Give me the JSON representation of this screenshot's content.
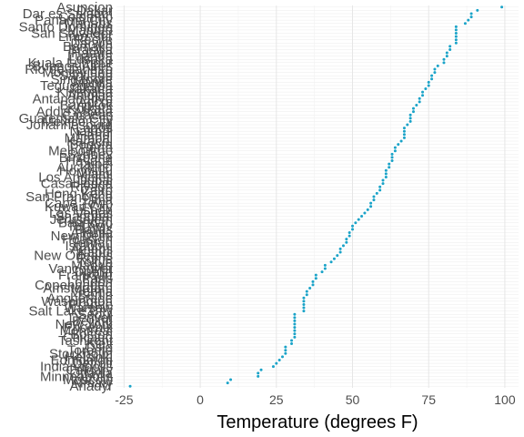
{
  "chart_data": {
    "type": "scatter",
    "title": "",
    "xlabel": "Temperature (degrees F)",
    "ylabel": "",
    "xlim": [
      -27.5,
      104.5
    ],
    "x_ticks": [
      "-25",
      "0",
      "25",
      "50",
      "75",
      "100"
    ],
    "x_tick_values": [
      -25,
      0,
      25,
      50,
      75,
      100
    ],
    "grid": true,
    "legend": "none",
    "point_color": "#1aa3c8",
    "points": [
      {
        "city": "Anadyr",
        "temp": -23
      },
      {
        "city": "Almaty",
        "temp": 9
      },
      {
        "city": "Moscow",
        "temp": 10
      },
      {
        "city": "Minneapolis",
        "temp": 19
      },
      {
        "city": "Ottawa",
        "temp": 19
      },
      {
        "city": "Calgary",
        "temp": 20
      },
      {
        "city": "Indianapolis",
        "temp": 24
      },
      {
        "city": "Detroit",
        "temp": 25
      },
      {
        "city": "Edmonton",
        "temp": 26
      },
      {
        "city": "Helsinki",
        "temp": 27
      },
      {
        "city": "Stockholm",
        "temp": 28
      },
      {
        "city": "Toronto",
        "temp": 28
      },
      {
        "city": "Oslo",
        "temp": 28
      },
      {
        "city": "Kiev",
        "temp": 30
      },
      {
        "city": "Tashkent",
        "temp": 30
      },
      {
        "city": "Chicago",
        "temp": 31
      },
      {
        "city": "Boston",
        "temp": 31
      },
      {
        "city": "Montreal",
        "temp": 31
      },
      {
        "city": "Phoenix",
        "temp": 31
      },
      {
        "city": "New York",
        "temp": 31
      },
      {
        "city": "Beijing",
        "temp": 31
      },
      {
        "city": "Denver",
        "temp": 31
      },
      {
        "city": "Seoul",
        "temp": 31
      },
      {
        "city": "Salt Lake City",
        "temp": 34
      },
      {
        "city": "Warsaw",
        "temp": 34
      },
      {
        "city": "Prague",
        "temp": 34
      },
      {
        "city": "Washington",
        "temp": 34
      },
      {
        "city": "Anchorage",
        "temp": 34
      },
      {
        "city": "Berlin",
        "temp": 35
      },
      {
        "city": "Vienna",
        "temp": 35
      },
      {
        "city": "Amsterdam",
        "temp": 36
      },
      {
        "city": "Copenhagen",
        "temp": 37
      },
      {
        "city": "London",
        "temp": 37
      },
      {
        "city": "Paris",
        "temp": 38
      },
      {
        "city": "Frankfurt",
        "temp": 38
      },
      {
        "city": "Dublin",
        "temp": 40
      },
      {
        "city": "Vancouver",
        "temp": 41
      },
      {
        "city": "Madrid",
        "temp": 41
      },
      {
        "city": "Tokyo",
        "temp": 43
      },
      {
        "city": "Rome",
        "temp": 44
      },
      {
        "city": "New Orleans",
        "temp": 45
      },
      {
        "city": "Kabul",
        "temp": 46
      },
      {
        "city": "Athens",
        "temp": 46
      },
      {
        "city": "Istanbul",
        "temp": 47
      },
      {
        "city": "Tehran",
        "temp": 48
      },
      {
        "city": "Houston",
        "temp": 48
      },
      {
        "city": "New Delhi",
        "temp": 49
      },
      {
        "city": "Atlanta",
        "temp": 49
      },
      {
        "city": "Dallas",
        "temp": 50
      },
      {
        "city": "Tel Aviv",
        "temp": 50
      },
      {
        "city": "Baghdad",
        "temp": 51
      },
      {
        "city": "Jerusalem",
        "temp": 52
      },
      {
        "city": "Shanghai",
        "temp": 53
      },
      {
        "city": "Las Vegas",
        "temp": 54
      },
      {
        "city": "Lisbon",
        "temp": 55
      },
      {
        "city": "Kuwait City",
        "temp": 56
      },
      {
        "city": "Cape Town",
        "temp": 56
      },
      {
        "city": "Lima",
        "temp": 57
      },
      {
        "city": "San Francisco",
        "temp": 57
      },
      {
        "city": "Hong Kong",
        "temp": 58
      },
      {
        "city": "Cairo",
        "temp": 59
      },
      {
        "city": "Riyadh",
        "temp": 59
      },
      {
        "city": "Casablanca",
        "temp": 60
      },
      {
        "city": "Dubai",
        "temp": 60
      },
      {
        "city": "Los Angeles",
        "temp": 61
      },
      {
        "city": "Miami",
        "temp": 61
      },
      {
        "city": "Honolulu",
        "temp": 61
      },
      {
        "city": "Auckland",
        "temp": 62
      },
      {
        "city": "Taipei",
        "temp": 62
      },
      {
        "city": "Havana",
        "temp": 63
      },
      {
        "city": "Brisbane",
        "temp": 63
      },
      {
        "city": "Sydney",
        "temp": 63
      },
      {
        "city": "Melbourne",
        "temp": 64
      },
      {
        "city": "Perth",
        "temp": 64
      },
      {
        "city": "Bogota",
        "temp": 65
      },
      {
        "city": "Karachi",
        "temp": 66
      },
      {
        "city": "Mumbai",
        "temp": 67
      },
      {
        "city": "Hanoi",
        "temp": 67
      },
      {
        "city": "Nairobi",
        "temp": 67
      },
      {
        "city": "Lagos",
        "temp": 67
      },
      {
        "city": "Johannesburg",
        "temp": 68
      },
      {
        "city": "Mexico City",
        "temp": 69
      },
      {
        "city": "Guatemala City",
        "temp": 69
      },
      {
        "city": "Caracas",
        "temp": 69
      },
      {
        "city": "Addis Ababa",
        "temp": 70
      },
      {
        "city": "Kolkata",
        "temp": 70
      },
      {
        "city": "Bangkok",
        "temp": 71
      },
      {
        "city": "Accra",
        "temp": 72
      },
      {
        "city": "Antananarivo",
        "temp": 72
      },
      {
        "city": "Abidjan",
        "temp": 73
      },
      {
        "city": "Kinshasa",
        "temp": 73
      },
      {
        "city": "Jakarta",
        "temp": 74
      },
      {
        "city": "Tegucigalpa",
        "temp": 75
      },
      {
        "city": "Manila",
        "temp": 75
      },
      {
        "city": "Singapore",
        "temp": 76
      },
      {
        "city": "Santiago",
        "temp": 76
      },
      {
        "city": "Montevideo",
        "temp": 77
      },
      {
        "city": "Rio de Janeiro",
        "temp": 77
      },
      {
        "city": "Buenos Aires",
        "temp": 78
      },
      {
        "city": "Kuala Lumpur",
        "temp": 80
      },
      {
        "city": "Lusaka",
        "temp": 80
      },
      {
        "city": "Luanda",
        "temp": 81
      },
      {
        "city": "Harare",
        "temp": 81
      },
      {
        "city": "Brasilia",
        "temp": 82
      },
      {
        "city": "Bamako",
        "temp": 82
      },
      {
        "city": "Darwin",
        "temp": 84
      },
      {
        "city": "Recife",
        "temp": 84
      },
      {
        "city": "Lima Sur",
        "temp": 84
      },
      {
        "city": "San Salvador",
        "temp": 84
      },
      {
        "city": "Maputo",
        "temp": 84
      },
      {
        "city": "Santo Domingo",
        "temp": 84
      },
      {
        "city": "Manaus",
        "temp": 87
      },
      {
        "city": "Panama City",
        "temp": 88
      },
      {
        "city": "Colombo",
        "temp": 89
      },
      {
        "city": "Dar es Salaam",
        "temp": 89
      },
      {
        "city": "Dakar",
        "temp": 91
      },
      {
        "city": "Asuncion",
        "temp": 99
      }
    ]
  }
}
